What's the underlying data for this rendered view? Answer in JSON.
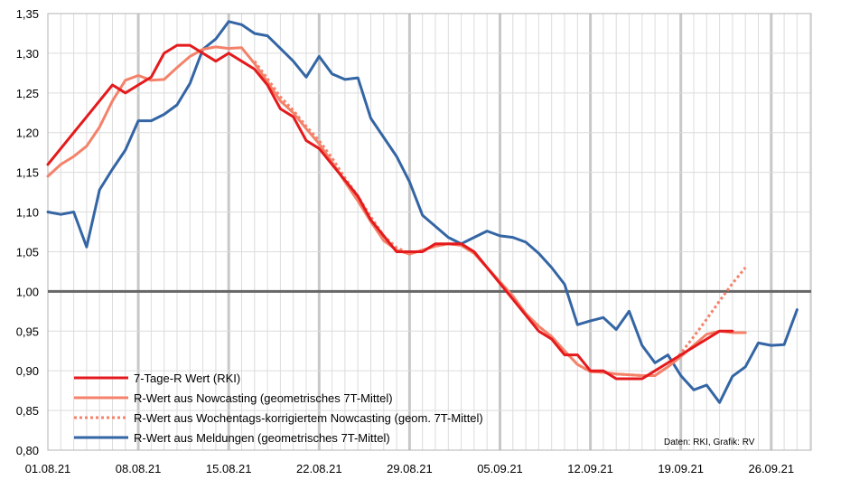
{
  "chart_data": {
    "type": "line",
    "x_start": "01.08.21",
    "x_tick_labels": [
      "01.08.21",
      "08.08.21",
      "15.08.21",
      "22.08.21",
      "29.08.21",
      "05.09.21",
      "12.09.21",
      "19.09.21",
      "26.09.21"
    ],
    "ylim": [
      0.8,
      1.35
    ],
    "y_tick_labels": [
      "0,80",
      "0,85",
      "0,90",
      "0,95",
      "1,00",
      "1,05",
      "1,10",
      "1,15",
      "1,20",
      "1,25",
      "1,30",
      "1,35"
    ],
    "reference_line": 1.0,
    "series": [
      {
        "name": "7-Tage-R Wert (RKI)",
        "color": "#e41a1c",
        "style": "solid",
        "values": [
          1.16,
          1.18,
          1.2,
          1.22,
          1.24,
          1.26,
          1.25,
          1.26,
          1.27,
          1.3,
          1.31,
          1.31,
          1.3,
          1.29,
          1.3,
          1.29,
          1.28,
          1.26,
          1.23,
          1.22,
          1.19,
          1.18,
          1.16,
          1.14,
          1.12,
          1.09,
          1.07,
          1.05,
          1.05,
          1.05,
          1.06,
          1.06,
          1.06,
          1.05,
          1.03,
          1.01,
          0.99,
          0.97,
          0.95,
          0.94,
          0.92,
          0.92,
          0.9,
          0.9,
          0.89,
          0.89,
          0.89,
          0.9,
          0.91,
          0.92,
          0.93,
          0.94,
          0.95,
          0.95
        ]
      },
      {
        "name": "R-Wert aus Nowcasting (geometrisches 7T-Mittel)",
        "color": "#f4826a",
        "style": "solid",
        "values": [
          1.145,
          1.16,
          1.17,
          1.183,
          1.207,
          1.24,
          1.266,
          1.272,
          1.266,
          1.267,
          1.282,
          1.296,
          1.305,
          1.308,
          1.306,
          1.307,
          1.287,
          1.264,
          1.24,
          1.225,
          1.205,
          1.186,
          1.163,
          1.138,
          1.114,
          1.088,
          1.064,
          1.052,
          1.047,
          1.052,
          1.057,
          1.06,
          1.058,
          1.048,
          1.03,
          1.012,
          0.994,
          0.972,
          0.956,
          0.943,
          0.925,
          0.908,
          0.899,
          0.898,
          0.896,
          0.895,
          0.894,
          0.894,
          0.905,
          0.918,
          0.932,
          0.946,
          0.95,
          0.948,
          0.948
        ]
      },
      {
        "name": "R-Wert aus Wochentags-korrigiertem Nowcasting (geom. 7T-Mittel)",
        "color": "#f4826a",
        "style": "dotted",
        "values": [
          null,
          null,
          null,
          null,
          null,
          null,
          null,
          null,
          null,
          null,
          null,
          null,
          null,
          null,
          null,
          null,
          1.29,
          1.268,
          1.245,
          1.228,
          1.208,
          1.19,
          1.168,
          1.143,
          1.12,
          1.094,
          1.07,
          1.055,
          1.048,
          1.052,
          1.057,
          1.06,
          1.058,
          1.048,
          1.03,
          1.012,
          0.994,
          0.972,
          0.956,
          0.943,
          0.925,
          0.908,
          0.899,
          0.898,
          0.896,
          0.895,
          0.894,
          0.894,
          0.905,
          0.922,
          0.943,
          0.965,
          0.988,
          1.01,
          1.03
        ]
      },
      {
        "name": "R-Wert aus Meldungen (geometrisches 7T-Mittel)",
        "color": "#3465a4",
        "style": "solid",
        "values": [
          1.1,
          1.097,
          1.1,
          1.056,
          1.128,
          1.154,
          1.178,
          1.215,
          1.215,
          1.223,
          1.235,
          1.262,
          1.305,
          1.318,
          1.34,
          1.336,
          1.325,
          1.322,
          1.306,
          1.29,
          1.27,
          1.296,
          1.274,
          1.267,
          1.269,
          1.218,
          1.194,
          1.17,
          1.138,
          1.096,
          1.082,
          1.068,
          1.06,
          1.068,
          1.076,
          1.07,
          1.068,
          1.062,
          1.048,
          1.03,
          1.009,
          0.958,
          0.963,
          0.967,
          0.952,
          0.975,
          0.932,
          0.91,
          0.92,
          0.894,
          0.876,
          0.882,
          0.86,
          0.893,
          0.905,
          0.935,
          0.932,
          0.933,
          0.977
        ]
      }
    ],
    "legend_position": "bottom-left",
    "grid": true,
    "credit": "Daten: RKI, Grafik: RV"
  }
}
